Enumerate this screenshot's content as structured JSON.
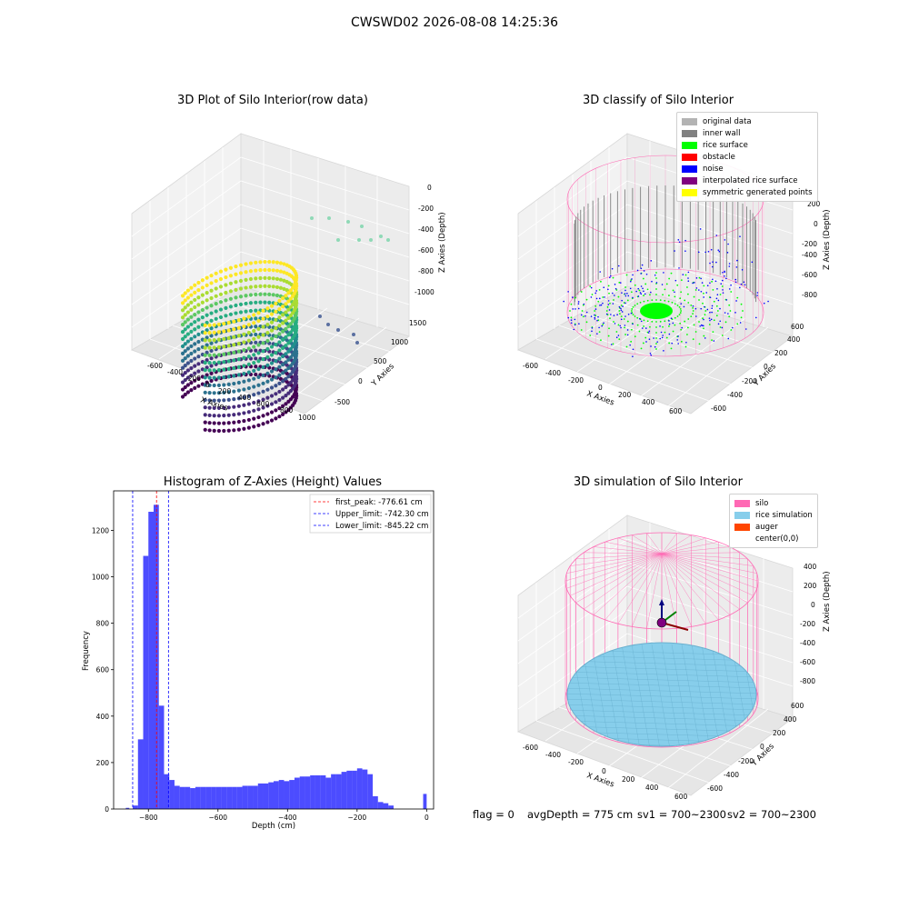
{
  "suptitle": "CWSWD02 2026-08-08 14:25:36",
  "plots": {
    "raw": {
      "title": "3D Plot of Silo Interior(row data)",
      "xlabel": "X Axies",
      "ylabel": "Y Axies",
      "zlabel": "Z Axies (Depth)",
      "xticks": [
        "-600",
        "-400",
        "-200",
        "0",
        "200",
        "400",
        "600",
        "800",
        "1000"
      ],
      "yticks": [
        "-500",
        "0",
        "500",
        "1000",
        "1500"
      ],
      "zticks": [
        "0",
        "-200",
        "-400",
        "-600",
        "-800",
        "-1000"
      ]
    },
    "classify": {
      "title": "3D classify of Silo Interior",
      "xlabel": "X Axies",
      "ylabel": "Y Axies",
      "zlabel": "Z Axies (Depth)",
      "xticks": [
        "-600",
        "-400",
        "-200",
        "0",
        "200",
        "400",
        "600"
      ],
      "yticks": [
        "-600",
        "-400",
        "-200",
        "0",
        "200",
        "400",
        "600"
      ],
      "zticks": [
        "200",
        "0",
        "-200",
        "-400",
        "-600",
        "-800"
      ],
      "legend": [
        {
          "label": "original data",
          "color": "#b3b3b3"
        },
        {
          "label": "inner wall",
          "color": "#808080"
        },
        {
          "label": "rice surface",
          "color": "#00ff00"
        },
        {
          "label": "obstacle",
          "color": "#ff0000"
        },
        {
          "label": "noise",
          "color": "#0000ff"
        },
        {
          "label": "interpolated rice surface",
          "color": "#800080"
        },
        {
          "label": "symmetric generated points",
          "color": "#ffff00"
        }
      ]
    },
    "simulation": {
      "title": "3D simulation of Silo Interior",
      "xlabel": "X Axies",
      "ylabel": "Y Axies",
      "zlabel": "Z Axies (Depth)",
      "xticks": [
        "-600",
        "-400",
        "-200",
        "0",
        "200",
        "400",
        "600"
      ],
      "yticks": [
        "-600",
        "-400",
        "-200",
        "0",
        "200",
        "400",
        "600"
      ],
      "zticks": [
        "400",
        "200",
        "0",
        "-200",
        "-400",
        "-600",
        "-800"
      ],
      "legend": [
        {
          "label": "silo",
          "color": "#ff69b4"
        },
        {
          "label": "rice simulation",
          "color": "#87ceeb"
        },
        {
          "label": "auger",
          "color": "#ff4500"
        },
        {
          "label": "center(0,0)",
          "color": "#ffffff"
        }
      ]
    }
  },
  "footer": {
    "flag": "flag = 0",
    "avg": "avgDepth = 775 cm",
    "sv1": "sv1 = 700~2300",
    "sv2": "sv2 = 700~2300"
  },
  "colors": {
    "hist_bar": "#0000ff",
    "peak_line": "#ff0000",
    "limit_line": "#0000ff"
  },
  "chart_data": [
    {
      "type": "scatter",
      "title": "3D Plot of Silo Interior(row data)",
      "xlabel": "X Axies",
      "ylabel": "Y Axies",
      "zlabel": "Z Axies (Depth)",
      "xlim": [
        -700,
        1000
      ],
      "ylim": [
        -600,
        1600
      ],
      "zlim": [
        -1100,
        50
      ]
    },
    {
      "type": "scatter",
      "title": "3D classify of Silo Interior",
      "xlabel": "X Axies",
      "ylabel": "Y Axies",
      "zlabel": "Z Axies (Depth)",
      "xlim": [
        -700,
        700
      ],
      "ylim": [
        -700,
        700
      ],
      "zlim": [
        -900,
        250
      ],
      "legend": [
        "original data",
        "inner wall",
        "rice surface",
        "obstacle",
        "noise",
        "interpolated rice surface",
        "symmetric generated points"
      ],
      "legend_position": "top-right"
    },
    {
      "type": "bar",
      "title": "Histogram of Z-Axies (Height) Values",
      "xlabel": "Depth (cm)",
      "ylabel": "Frequency",
      "xlim": [
        -900,
        20
      ],
      "ylim": [
        0,
        1370
      ],
      "xticks": [
        -800,
        -600,
        -400,
        -200,
        0
      ],
      "yticks": [
        0,
        200,
        400,
        600,
        800,
        1000,
        1200
      ],
      "bin_width": 15,
      "bin_start": -845,
      "values": [
        15,
        300,
        1090,
        1280,
        1310,
        445,
        150,
        125,
        100,
        95,
        95,
        90,
        95,
        95,
        95,
        95,
        95,
        95,
        95,
        95,
        95,
        100,
        100,
        100,
        110,
        110,
        115,
        120,
        125,
        120,
        125,
        135,
        140,
        140,
        145,
        145,
        145,
        135,
        150,
        150,
        160,
        165,
        165,
        175,
        170,
        150,
        55,
        30,
        25,
        15,
        0
      ],
      "extra_bars": [
        {
          "x": -5,
          "value": 65
        },
        {
          "x": -860,
          "value": 5
        }
      ],
      "lines": [
        {
          "name": "first_peak: -776.61 cm",
          "x": -776.61,
          "color": "#ff0000"
        },
        {
          "name": "Upper_limit: -742.30 cm",
          "x": -742.3,
          "color": "#0000ff"
        },
        {
          "name": "Lower_limit: -845.22 cm",
          "x": -845.22,
          "color": "#0000ff"
        }
      ],
      "legend_position": "top-right"
    },
    {
      "type": "scatter",
      "title": "3D simulation of Silo Interior",
      "xlabel": "X Axies",
      "ylabel": "Y Axies",
      "zlabel": "Z Axies (Depth)",
      "xlim": [
        -700,
        700
      ],
      "ylim": [
        -700,
        700
      ],
      "zlim": [
        -900,
        450
      ],
      "legend": [
        "silo",
        "rice simulation",
        "auger",
        "center(0,0)"
      ],
      "legend_position": "top-right"
    }
  ]
}
